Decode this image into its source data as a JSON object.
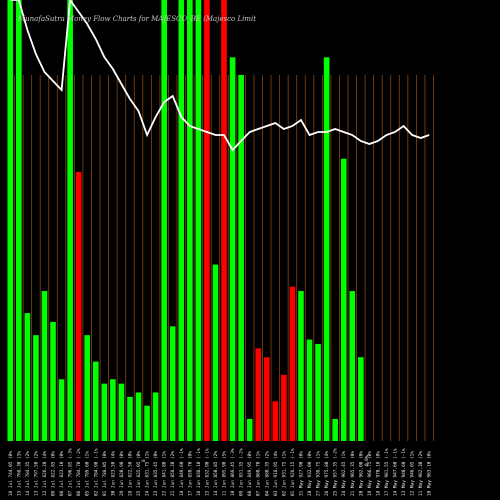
{
  "chart_data": {
    "type": "bar",
    "title": "MunafaSutra  Money  Flow  Charts for MAJESCO_BE          (Majesco  Limit",
    "ylim": [
      0,
      100
    ],
    "grid": "vertical",
    "colors": {
      "background": "#000000",
      "up": "#00ff00",
      "down": "#ff0000",
      "line": "#ffffff",
      "grid": "#8b4513"
    },
    "categories": [
      "16 Jul 744.05 (0%",
      "15 Jul 768.30 (3%",
      "14 Jul 784.35 (2%",
      "13 Jul 797.50 (2%",
      "12 Jul 826.20 (4%",
      "09 Jul 822.85 (0%",
      "08 Jul 823.10 (0%",
      "07 Jul 796.85 (-3%",
      "06 Jul 784.70 (-2%",
      "05 Jul 789.60 (1%",
      "02 Jul 784.90 (-1%",
      "01 Jul 788.05 (0%",
      "30 Jun 823.50 (4%",
      "29 Jun 820.90 (0%",
      "28 Jun 822.50 (0%",
      "25 Jun 825.05 (0%",
      "24 Jun 831.75 (1%",
      "23 Jun 835.45 (0%",
      "22 Jun 841.80 (1%",
      "21 Jun 858.20 (2%",
      "18 Jun 849.60 (-1%",
      "17 Jun 850.70 (0%",
      "16 Jun 838.10 (-1%",
      "15 Jun 832.90 (-1%",
      "14 Jun 850.85 (2%",
      "11 Jun 895.90 (5%",
      "10 Jun 869.45 (-3%",
      "09 Jun 851.35 (-2%",
      "08 Jun 849.95 (0%",
      "07 Jun 860.70 (1%",
      "04 Jun 880.35 (2%",
      "03 Jun 918.95 (4%",
      "02 Jun 931.75 (1%",
      "01 Jun 926.15 (-1%",
      "31 May 927.90 (0%",
      "28 May 932.00 (0%",
      "27 May 938.75 (1%",
      "26 May 975.80 (4%",
      "25 May 957.35 (-2%",
      "24 May 962.45 (1%",
      "21 May 965.35 (0%",
      "20 May 962.00 (0%",
      "19 May 966.75 (0%",
      "18 May 970.10 (0%",
      "17 May 961.55 (-1%",
      "14 May 947.60 (-1%",
      "13 May 940.60 (-1%",
      "12 May 946.05 (1%",
      "11 May 962.30 (2%",
      "10 May 963.10 (0%"
    ],
    "extra_tick_labels": [
      "8",
      "0.0%"
    ],
    "series": [
      {
        "colors": [
          "up",
          "up",
          "up",
          "up",
          "up",
          "up",
          "up",
          "up",
          "down",
          "up",
          "up",
          "up",
          "up",
          "up",
          "up",
          "up",
          "up",
          "up",
          "up",
          "up",
          "up",
          "up",
          "up",
          "down",
          "up",
          "down",
          "up",
          "up",
          "up",
          "down",
          "down",
          "down",
          "down",
          "down",
          "up",
          "up",
          "up",
          "up",
          "up",
          "up",
          "up",
          "up",
          "up",
          "up",
          "up",
          "up",
          "up",
          "up",
          "up",
          "up"
        ],
        "values": [
          100,
          100,
          29,
          24,
          34,
          27,
          14,
          100,
          61,
          24,
          18,
          13,
          14,
          13,
          10,
          11,
          8,
          11,
          100,
          26,
          100,
          100,
          100,
          100,
          40,
          100,
          87,
          83,
          5,
          21,
          19,
          9,
          15,
          35,
          34,
          23,
          22,
          87,
          5,
          64,
          34,
          19,
          null,
          null,
          null,
          null,
          null,
          null,
          null,
          null
        ]
      }
    ],
    "line_values": [
      100,
      100,
      90,
      82,
      76,
      73,
      70,
      100,
      96,
      92,
      87,
      81,
      77,
      72,
      67,
      63,
      55,
      61,
      66,
      68,
      61,
      58,
      57,
      56,
      55,
      55,
      50,
      53,
      56,
      57,
      58,
      59,
      57,
      58,
      60,
      55,
      56,
      56,
      57,
      56,
      55,
      53,
      52,
      53,
      55,
      56,
      58,
      55,
      54,
      55
    ]
  }
}
